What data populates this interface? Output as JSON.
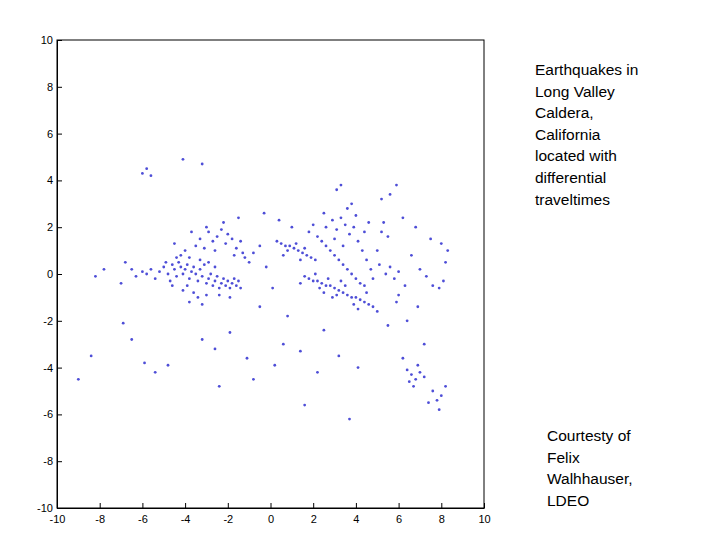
{
  "chart_data": {
    "type": "scatter",
    "title": [
      "Earthquakes in",
      "Long Valley",
      "Caldera,",
      "California",
      "located with",
      "differential",
      "traveltimes"
    ],
    "annotations": [
      {
        "text": [
          "Courtesty of",
          "Felix",
          "Walhhauser,",
          "LDEO"
        ]
      }
    ],
    "color": "#2f2fd0",
    "marker": "point",
    "grid": false,
    "xlim": [
      -10,
      10
    ],
    "ylim": [
      -10,
      10
    ],
    "xticks": [
      -10,
      -8,
      -6,
      -4,
      -2,
      0,
      2,
      4,
      6,
      8,
      10
    ],
    "yticks": [
      -10,
      -8,
      -6,
      -4,
      -2,
      0,
      2,
      4,
      6,
      8,
      10
    ],
    "x": [
      -5.2,
      -5.0,
      -4.8,
      -4.6,
      -4.5,
      -4.4,
      -4.3,
      -4.2,
      -4.1,
      -4.0,
      -3.9,
      -3.8,
      -3.7,
      -3.6,
      -3.5,
      -3.4,
      -3.3,
      -3.2,
      -3.1,
      -3.0,
      -2.9,
      -2.8,
      -2.7,
      -2.6,
      -2.5,
      -2.4,
      -2.3,
      -2.2,
      -2.1,
      -2.0,
      -1.9,
      -1.8,
      -1.7,
      -1.6,
      -1.5,
      -1.4,
      -4.7,
      -4.4,
      -3.9,
      -3.6,
      -3.4,
      -3.8,
      -4.1,
      -4.6,
      -5.4,
      -5.6,
      -5.8,
      -6.0,
      -6.3,
      -6.5,
      -4.2,
      -3.8,
      -3.3,
      -2.9,
      -2.6,
      -3.0,
      -3.2,
      -2.4,
      -1.9,
      -4.9,
      -3.5,
      -3.3,
      -3.1,
      -2.9,
      -2.7,
      -2.5,
      -2.3,
      -2.1,
      -2.0,
      -1.8,
      -1.6,
      -1.4,
      -1.3,
      -1.2,
      -1.0,
      -2.6,
      -3.0,
      -2.2,
      -1.5,
      -4.0,
      -4.5,
      -1.7,
      -0.8,
      -0.5,
      -3.7,
      0.3,
      0.5,
      0.7,
      0.9,
      1.1,
      1.3,
      1.5,
      1.7,
      1.9,
      2.1,
      0.8,
      1.2,
      1.6,
      0.6,
      1.4,
      1.6,
      1.8,
      2.0,
      2.2,
      2.4,
      2.6,
      2.8,
      3.0,
      3.2,
      3.4,
      3.6,
      3.8,
      4.0,
      4.2,
      4.4,
      4.6,
      4.8,
      2.3,
      2.7,
      3.1,
      3.5,
      3.9,
      2.1,
      2.5,
      3.3,
      4.1,
      1.4,
      4.5,
      5.0,
      2.9,
      2.2,
      2.4,
      2.6,
      2.8,
      3.0,
      3.2,
      3.4,
      3.6,
      3.8,
      4.0,
      4.2,
      4.4,
      2.6,
      2.9,
      3.1,
      3.3,
      3.5,
      3.7,
      3.9,
      4.1,
      4.3,
      4.5,
      4.7,
      3.0,
      3.4,
      2.5,
      3.6,
      4.0,
      4.4,
      2.0,
      1.8,
      3.8,
      4.6,
      5.0,
      4.8,
      5.2,
      5.3,
      5.5,
      5.1,
      5.4,
      5.6,
      5.8,
      6.0,
      6.3,
      6.6,
      7.0,
      7.3,
      7.6,
      7.9,
      8.1,
      8.2,
      7.5,
      8.0,
      6.8,
      6.2,
      5.6,
      5.9,
      5.2,
      6.9,
      6.4,
      5.9,
      5.5,
      7.2,
      8.3,
      6.0,
      6.4,
      6.6,
      6.8,
      7.0,
      6.7,
      6.5,
      7.2,
      7.6,
      7.8,
      7.9,
      8.0,
      7.4,
      6.2,
      6.9,
      8.2,
      -6.0,
      -5.8,
      -5.6,
      -4.1,
      -3.2,
      3.1,
      3.3,
      -0.3,
      0.4,
      1.0,
      -7.8,
      -8.2,
      -7.0,
      -6.8,
      -9.0,
      -8.4,
      -6.5,
      -5.9,
      -5.4,
      -4.8,
      -3.2,
      -2.6,
      -1.9,
      -1.1,
      -0.8,
      0.2,
      0.6,
      1.4,
      2.2,
      2.5,
      3.2,
      4.1,
      3.7,
      1.6,
      -2.4,
      -6.9,
      -0.5,
      0.1,
      -0.2,
      0.8
    ],
    "values": [
      0.1,
      0.3,
      0.0,
      0.4,
      0.2,
      -0.1,
      0.5,
      0.3,
      0.0,
      0.2,
      0.4,
      -0.2,
      0.1,
      0.3,
      0.0,
      -0.3,
      0.2,
      -0.1,
      0.4,
      -0.4,
      -0.2,
      0.0,
      -0.5,
      -0.3,
      -0.1,
      -0.6,
      -0.4,
      -0.2,
      -0.5,
      -0.3,
      -0.6,
      -0.4,
      -0.2,
      -0.5,
      -0.3,
      -0.6,
      -0.3,
      0.7,
      -0.5,
      -0.8,
      -1.0,
      -1.2,
      -0.7,
      -0.5,
      -0.2,
      0.2,
      0.0,
      0.1,
      -0.1,
      0.2,
      0.8,
      0.7,
      0.6,
      0.5,
      0.3,
      -0.9,
      -1.3,
      -0.9,
      -1.0,
      0.5,
      1.2,
      1.5,
      1.1,
      1.8,
      1.4,
      1.6,
      1.9,
      1.3,
      1.7,
      1.5,
      1.1,
      1.4,
      0.9,
      0.7,
      0.5,
      1.0,
      2.0,
      2.2,
      2.4,
      1.0,
      1.3,
      0.8,
      0.9,
      1.2,
      1.8,
      1.4,
      1.3,
      1.2,
      1.2,
      1.1,
      1.0,
      0.9,
      0.8,
      0.7,
      0.6,
      1.0,
      1.3,
      1.1,
      0.8,
      0.6,
      -0.1,
      -0.2,
      -0.3,
      -0.3,
      -0.4,
      -0.5,
      -0.5,
      -0.6,
      -0.7,
      -0.8,
      -0.9,
      -1.0,
      -1.0,
      -1.1,
      -1.2,
      -1.3,
      -1.4,
      -0.6,
      -0.2,
      -0.9,
      -0.5,
      -1.3,
      0.0,
      -0.8,
      -0.3,
      -1.5,
      -0.4,
      -0.8,
      -1.6,
      -1.0,
      1.6,
      1.4,
      1.2,
      1.0,
      0.8,
      0.6,
      0.4,
      0.2,
      0.0,
      -0.2,
      -0.4,
      -0.5,
      2.0,
      2.3,
      1.9,
      2.4,
      2.1,
      1.7,
      2.0,
      1.4,
      1.0,
      0.6,
      0.2,
      1.5,
      1.2,
      2.6,
      2.8,
      2.5,
      1.8,
      2.1,
      1.8,
      3.0,
      2.2,
      1.0,
      -0.2,
      1.8,
      2.2,
      1.6,
      0.4,
      0.0,
      0.3,
      -0.2,
      0.1,
      -0.5,
      0.8,
      0.2,
      -0.1,
      -0.5,
      -0.6,
      -0.3,
      0.5,
      1.5,
      1.3,
      2.0,
      2.4,
      3.4,
      3.8,
      3.2,
      -1.4,
      -2.0,
      -1.2,
      -2.2,
      -3.0,
      1.0,
      -0.9,
      -4.1,
      -4.3,
      -4.5,
      -4.2,
      -4.8,
      -4.6,
      -4.4,
      -5.0,
      -5.4,
      -5.8,
      -5.2,
      -5.5,
      -3.6,
      -3.9,
      -4.8,
      4.3,
      4.5,
      4.2,
      4.9,
      4.7,
      3.6,
      3.8,
      2.6,
      2.3,
      2.0,
      0.2,
      -0.1,
      -0.4,
      0.5,
      -4.5,
      -3.5,
      -2.8,
      -3.8,
      -4.2,
      -3.9,
      -2.8,
      -3.2,
      -2.5,
      -3.6,
      -4.5,
      -3.9,
      -3.0,
      -3.3,
      -4.2,
      -2.4,
      -3.5,
      -4.0,
      -6.2,
      -5.6,
      -4.8,
      -2.1,
      -1.4,
      -0.6,
      0.3,
      -1.8
    ]
  }
}
